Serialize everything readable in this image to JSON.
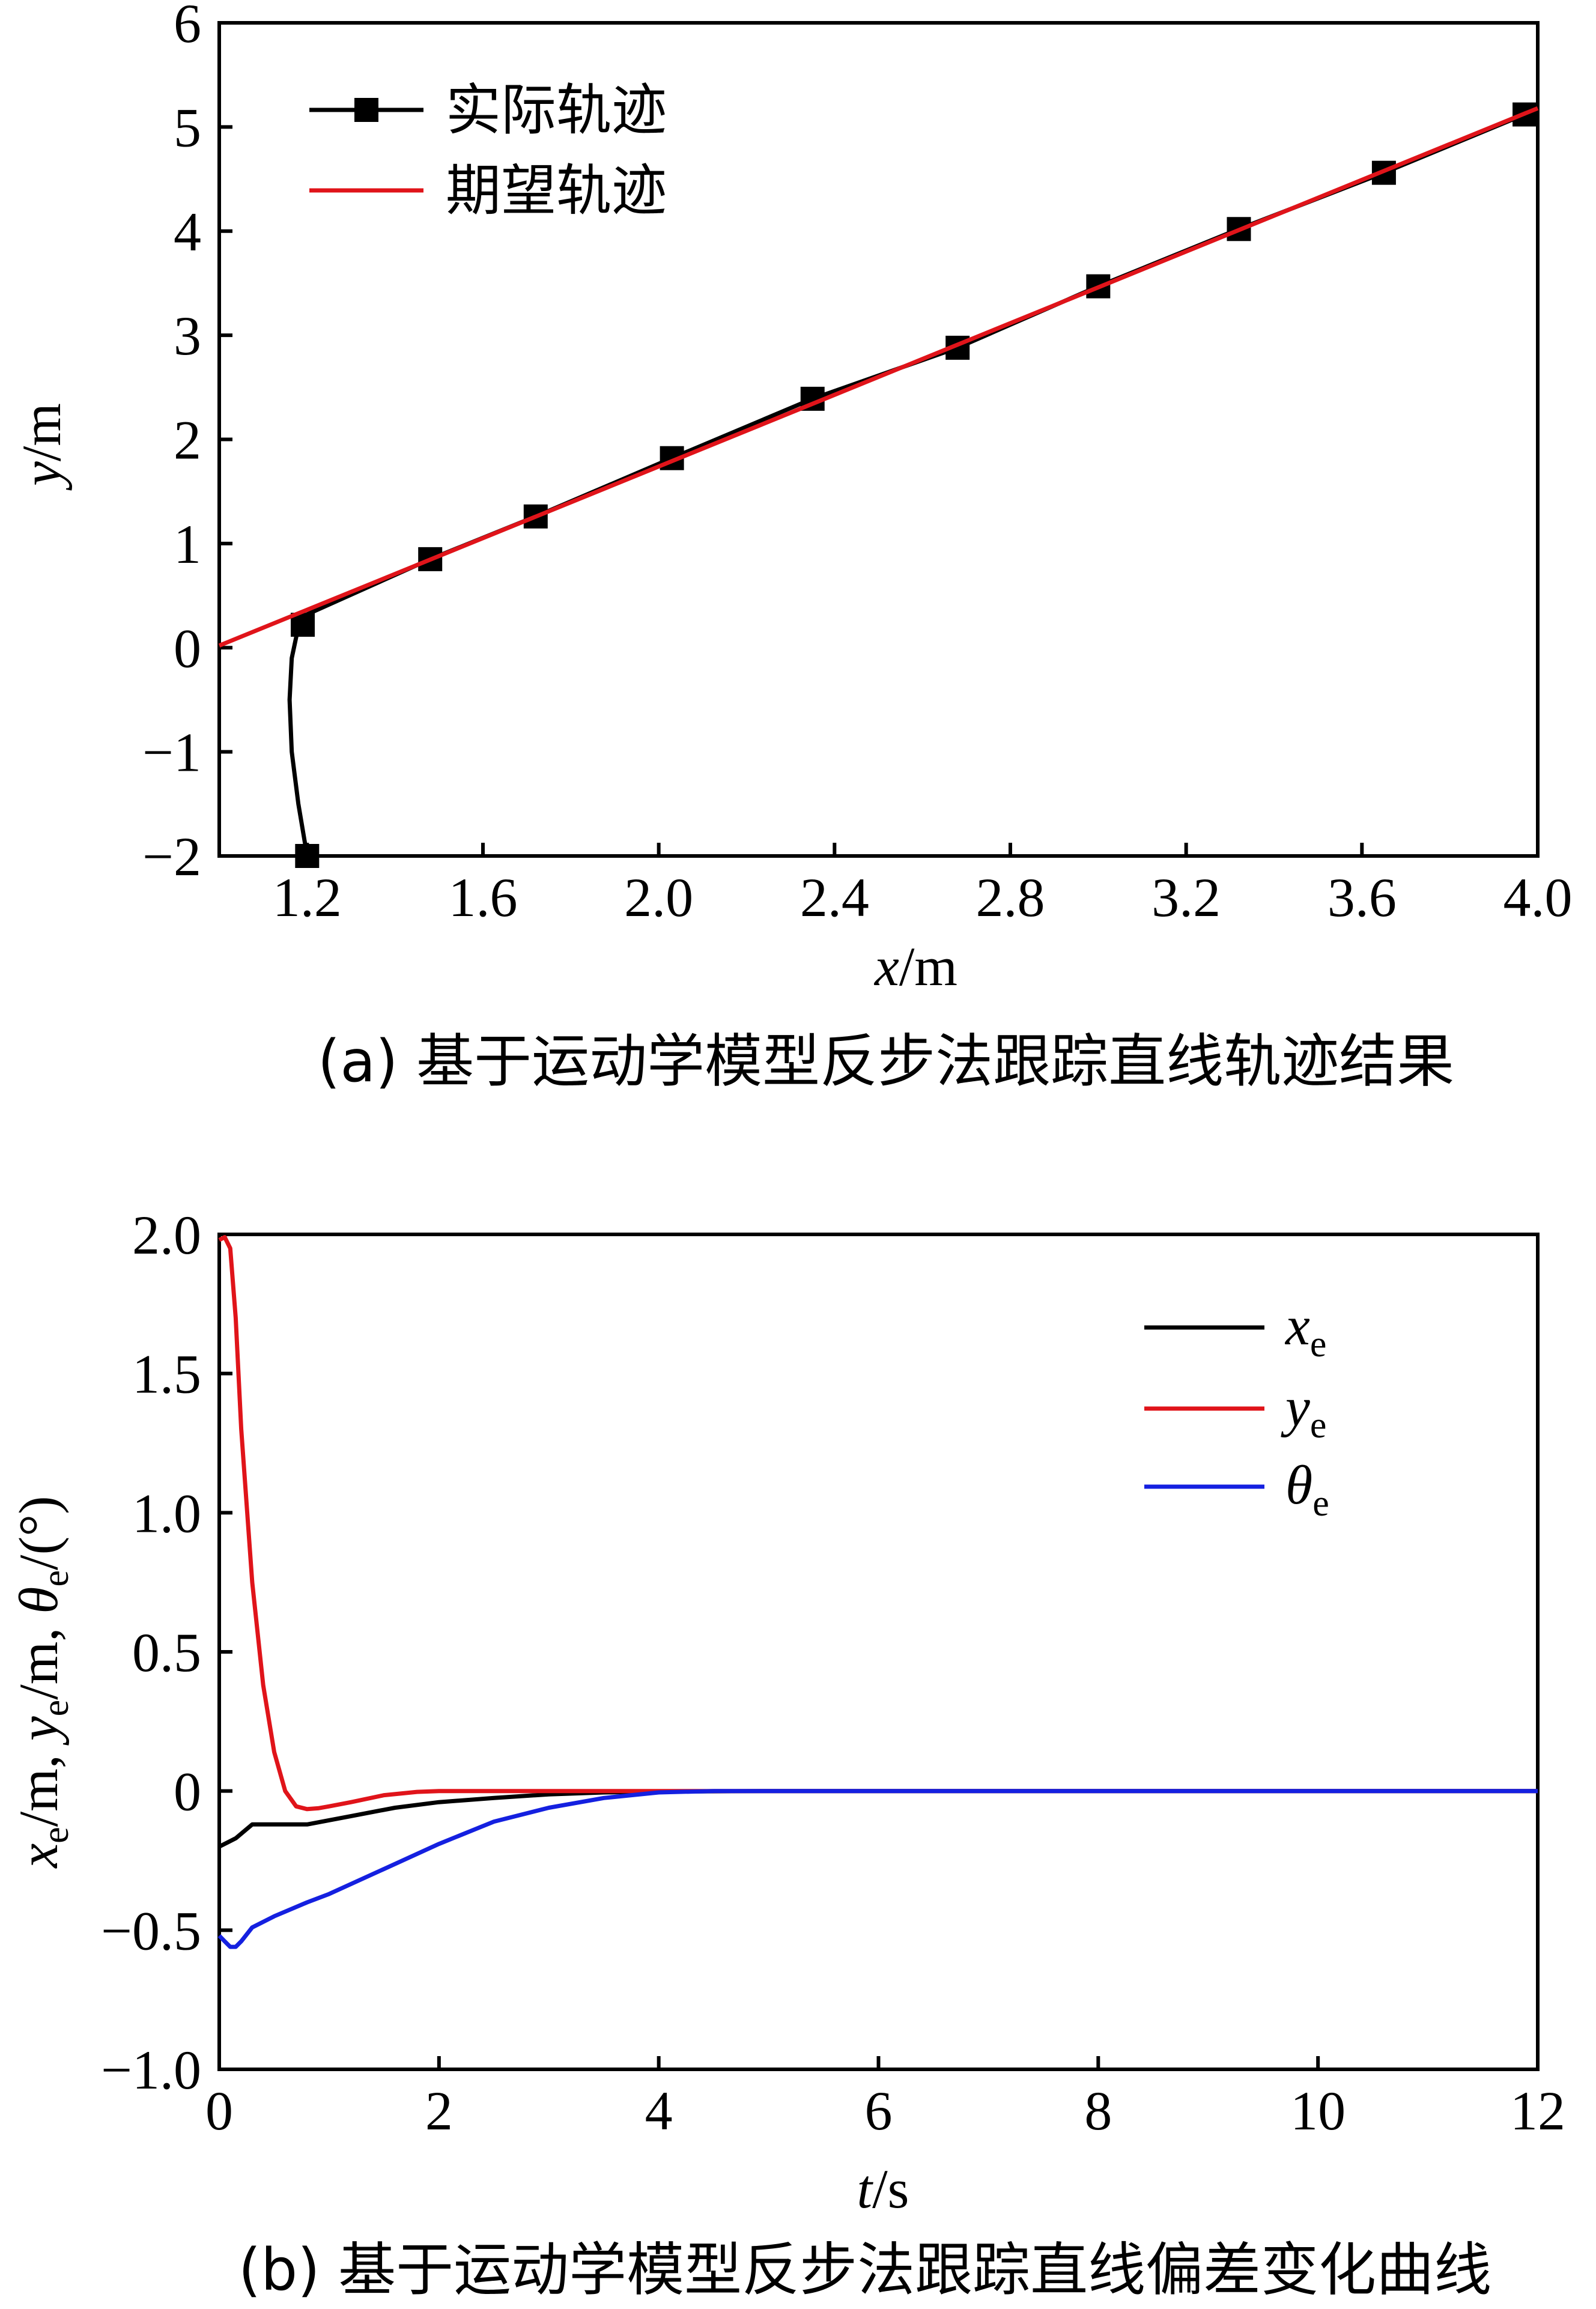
{
  "chart_data": [
    {
      "type": "line",
      "caption": "(a) 基于运动学模型反步法跟踪直线轨迹结果",
      "xlabel": "x/m",
      "ylabel": "y/m",
      "xlim": [
        1.0,
        4.0
      ],
      "ylim": [
        -2,
        6
      ],
      "xticks": [
        1.2,
        1.6,
        2.0,
        2.4,
        2.8,
        3.2,
        3.6,
        4.0
      ],
      "yticks": [
        -2,
        -1,
        0,
        1,
        2,
        3,
        4,
        5,
        6
      ],
      "xtick_labels": [
        "1.2",
        "1.6",
        "2.0",
        "2.4",
        "2.8",
        "3.2",
        "3.6",
        "4.0"
      ],
      "ytick_labels": [
        "−2",
        "−1",
        "0",
        "1",
        "2",
        "3",
        "4",
        "5",
        "6"
      ],
      "legend_position": "top-left",
      "series": [
        {
          "name": "实际轨迹",
          "color": "#000000",
          "marker": "square",
          "curve": [
            [
              1.2,
              -2.0
            ],
            [
              1.18,
              -1.5
            ],
            [
              1.165,
              -1.0
            ],
            [
              1.16,
              -0.5
            ],
            [
              1.165,
              -0.1
            ],
            [
              1.18,
              0.2
            ],
            [
              1.2,
              0.32
            ],
            [
              1.48,
              0.85
            ],
            [
              1.72,
              1.26
            ],
            [
              2.03,
              1.82
            ],
            [
              2.35,
              2.39
            ],
            [
              2.68,
              2.88
            ],
            [
              3.0,
              3.47
            ],
            [
              3.32,
              4.02
            ],
            [
              3.65,
              4.56
            ],
            [
              3.97,
              5.12
            ],
            [
              4.0,
              5.18
            ]
          ],
          "markers": [
            [
              1.2,
              -2.0
            ],
            [
              1.19,
              0.22
            ],
            [
              1.48,
              0.85
            ],
            [
              1.72,
              1.26
            ],
            [
              2.03,
              1.82
            ],
            [
              2.35,
              2.39
            ],
            [
              2.68,
              2.88
            ],
            [
              3.0,
              3.47
            ],
            [
              3.32,
              4.02
            ],
            [
              3.65,
              4.56
            ],
            [
              3.97,
              5.12
            ]
          ]
        },
        {
          "name": "期望轨迹",
          "color": "#e0141a",
          "x": [
            1.0,
            4.0
          ],
          "y": [
            0.02,
            5.18
          ]
        }
      ]
    },
    {
      "type": "line",
      "caption": "(b) 基于运动学模型反步法跟踪直线偏差变化曲线",
      "xlabel": "t/s",
      "ylabel": "xe/m, ye/m, θe/(°)",
      "xlim": [
        0,
        12
      ],
      "ylim": [
        -1.0,
        2.0
      ],
      "xticks": [
        0,
        2,
        4,
        6,
        8,
        10,
        12
      ],
      "yticks": [
        -1.0,
        -0.5,
        0,
        0.5,
        1.0,
        1.5,
        2.0
      ],
      "xtick_labels": [
        "0",
        "2",
        "4",
        "6",
        "8",
        "10",
        "12"
      ],
      "ytick_labels": [
        "−1.0",
        "−0.5",
        "0",
        "0.5",
        "1.0",
        "1.5",
        "2.0"
      ],
      "legend_position": "top-right",
      "series": [
        {
          "name": "xe",
          "color": "#000000",
          "x": [
            0,
            0.15,
            0.3,
            0.5,
            0.8,
            1.2,
            1.6,
            2.0,
            2.5,
            3.0,
            3.5,
            4.0,
            5.0,
            12.0
          ],
          "y": [
            -0.2,
            -0.17,
            -0.12,
            -0.12,
            -0.12,
            -0.09,
            -0.06,
            -0.04,
            -0.025,
            -0.012,
            -0.005,
            -0.002,
            0,
            0
          ]
        },
        {
          "name": "ye",
          "color": "#e0141a",
          "x": [
            0,
            0.05,
            0.1,
            0.15,
            0.2,
            0.3,
            0.4,
            0.5,
            0.6,
            0.7,
            0.8,
            0.9,
            1.0,
            1.2,
            1.5,
            1.8,
            2.0,
            2.5,
            3.0,
            4.0,
            12.0
          ],
          "y": [
            1.98,
            1.99,
            1.95,
            1.7,
            1.3,
            0.75,
            0.38,
            0.14,
            0.0,
            -0.055,
            -0.065,
            -0.062,
            -0.055,
            -0.04,
            -0.015,
            -0.003,
            0.0,
            0.0,
            0.0,
            0.0,
            0.0
          ]
        },
        {
          "name": "θe",
          "color": "#1420e0",
          "x": [
            0,
            0.05,
            0.1,
            0.15,
            0.2,
            0.3,
            0.5,
            0.8,
            1.0,
            1.5,
            2.0,
            2.5,
            3.0,
            3.5,
            4.0,
            4.5,
            12.0
          ],
          "y": [
            -0.52,
            -0.54,
            -0.56,
            -0.56,
            -0.54,
            -0.49,
            -0.45,
            -0.4,
            -0.37,
            -0.28,
            -0.19,
            -0.11,
            -0.06,
            -0.025,
            -0.005,
            0.0,
            0.0
          ]
        }
      ]
    }
  ]
}
